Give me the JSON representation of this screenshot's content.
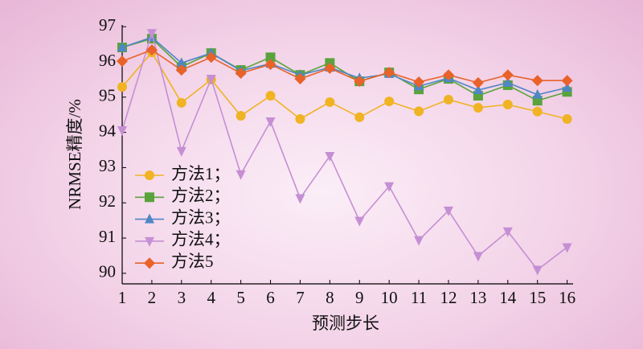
{
  "chart_data": {
    "type": "line",
    "x_label": "预测步长",
    "y_label": "NRMSE精度/%",
    "x": [
      1,
      2,
      3,
      4,
      5,
      6,
      7,
      8,
      9,
      10,
      11,
      12,
      13,
      14,
      15,
      16
    ],
    "xlim": [
      1,
      16.2
    ],
    "xticks": [
      1,
      2,
      3,
      4,
      5,
      6,
      7,
      8,
      9,
      10,
      11,
      12,
      13,
      14,
      15,
      16
    ],
    "ylim": [
      89.7,
      97.05
    ],
    "yticks": [
      90,
      91,
      92,
      93,
      94,
      95,
      96,
      97
    ],
    "legend": "center left",
    "grid": false,
    "series": [
      {
        "name": "方法1；",
        "color": "#f0b323",
        "marker": "circle",
        "values": [
          95.29,
          96.27,
          94.84,
          95.5,
          94.47,
          95.04,
          94.38,
          94.86,
          94.43,
          94.88,
          94.6,
          94.93,
          94.7,
          94.79,
          94.59,
          94.38
        ]
      },
      {
        "name": "方法2；",
        "color": "#5aa33c",
        "marker": "square",
        "values": [
          96.41,
          96.66,
          95.86,
          96.25,
          95.77,
          96.13,
          95.63,
          95.97,
          95.45,
          95.7,
          95.22,
          95.52,
          95.04,
          95.34,
          94.9,
          95.15
        ]
      },
      {
        "name": "方法3；",
        "color": "#4f86c6",
        "marker": "triangle",
        "values": [
          96.41,
          96.7,
          95.97,
          96.25,
          95.75,
          95.95,
          95.63,
          95.84,
          95.54,
          95.66,
          95.31,
          95.54,
          95.2,
          95.41,
          95.07,
          95.27
        ]
      },
      {
        "name": "方法4；",
        "color": "#c58fd4",
        "marker": "triangle-down",
        "values": [
          94.06,
          96.82,
          93.47,
          95.52,
          92.81,
          94.31,
          92.13,
          93.33,
          91.49,
          92.47,
          90.94,
          91.78,
          90.49,
          91.19,
          90.1,
          90.74
        ]
      },
      {
        "name": "方法5",
        "color": "#e8622a",
        "marker": "diamond",
        "values": [
          96.02,
          96.34,
          95.77,
          96.13,
          95.68,
          95.93,
          95.52,
          95.82,
          95.45,
          95.7,
          95.43,
          95.63,
          95.41,
          95.63,
          95.47,
          95.47
        ]
      }
    ]
  }
}
